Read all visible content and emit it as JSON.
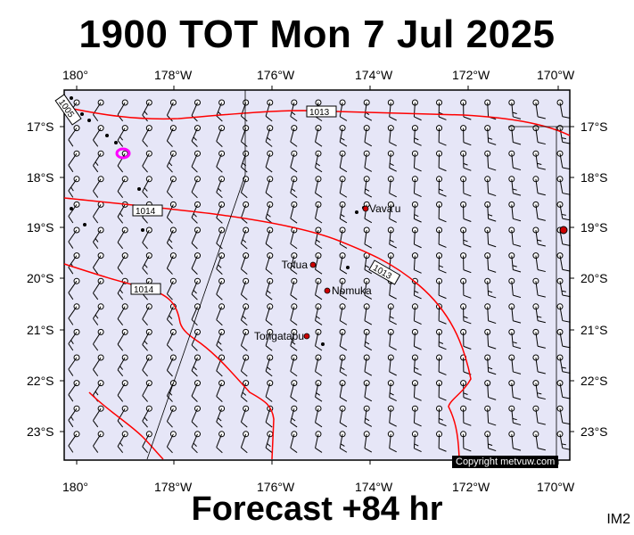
{
  "header": {
    "title": "1900 TOT Mon 7 Jul 2025"
  },
  "footer": {
    "forecast": "Forecast +84 hr",
    "image_id": "IM2"
  },
  "map": {
    "lon_ticks": [
      "180°",
      "178°W",
      "176°W",
      "174°W",
      "172°W",
      "170°W"
    ],
    "lat_ticks": [
      "17°S",
      "18°S",
      "19°S",
      "20°S",
      "21°S",
      "22°S",
      "23°S"
    ],
    "isobars": [
      "1013",
      "1014",
      "1013",
      "1014",
      "1005"
    ],
    "places": [
      {
        "name": "Vava'u"
      },
      {
        "name": "Tofua"
      },
      {
        "name": "Nomuka"
      },
      {
        "name": "Tongatapu"
      }
    ],
    "copyright": "Copyright metvuw.com",
    "colors": {
      "background": "#e6e6f7",
      "isobar": "#ff0000",
      "land": "#000000",
      "city": "#cc0000",
      "low_marker": "#ff00ff"
    }
  }
}
